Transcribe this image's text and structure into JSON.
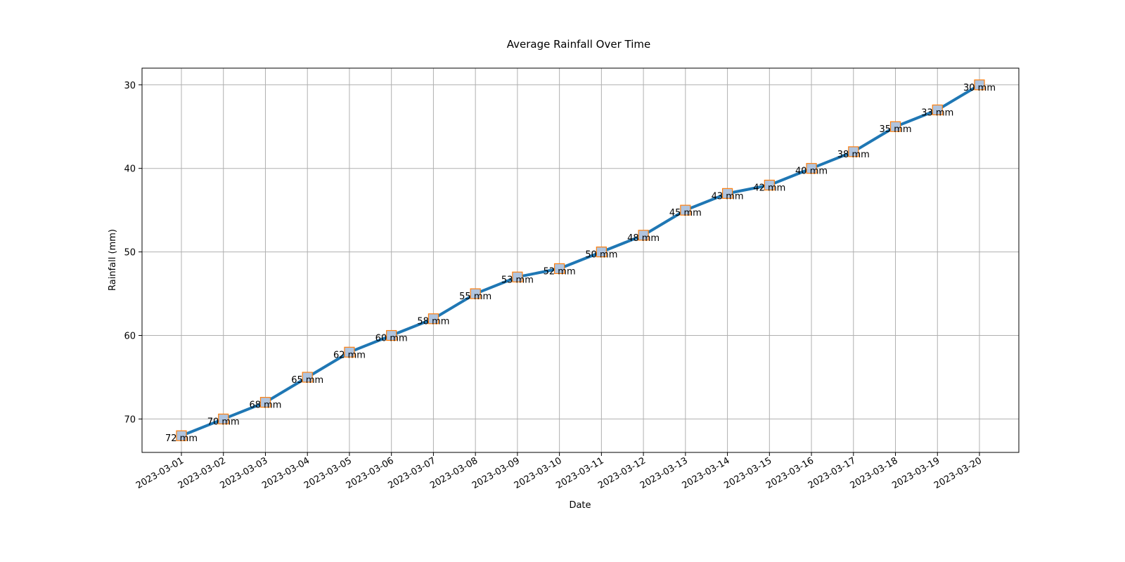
{
  "chart_data": {
    "type": "line",
    "title": "Average Rainfall Over Time",
    "xlabel": "Date",
    "ylabel": "Rainfall (mm)",
    "y_inverted": true,
    "ylim": [
      74,
      28
    ],
    "yticks": [
      30,
      40,
      50,
      60,
      70
    ],
    "grid": true,
    "legend": "none",
    "unit_suffix": " mm",
    "colors": {
      "line": "#1f77b4",
      "marker_fill": "#b0c4de",
      "marker_edge": "#ff7f0e"
    },
    "x": [
      "2023-03-01",
      "2023-03-02",
      "2023-03-03",
      "2023-03-04",
      "2023-03-05",
      "2023-03-06",
      "2023-03-07",
      "2023-03-08",
      "2023-03-09",
      "2023-03-10",
      "2023-03-11",
      "2023-03-12",
      "2023-03-13",
      "2023-03-14",
      "2023-03-15",
      "2023-03-16",
      "2023-03-17",
      "2023-03-18",
      "2023-03-19",
      "2023-03-20"
    ],
    "series": [
      {
        "values": [
          72,
          70,
          68,
          65,
          62,
          60,
          58,
          55,
          53,
          52,
          50,
          48,
          45,
          43,
          42,
          40,
          38,
          35,
          33,
          30
        ]
      }
    ],
    "data_labels": [
      "72 mm",
      "70 mm",
      "68 mm",
      "65 mm",
      "62 mm",
      "60 mm",
      "58 mm",
      "55 mm",
      "53 mm",
      "52 mm",
      "50 mm",
      "48 mm",
      "45 mm",
      "43 mm",
      "42 mm",
      "40 mm",
      "38 mm",
      "35 mm",
      "33 mm",
      "30 mm"
    ]
  }
}
